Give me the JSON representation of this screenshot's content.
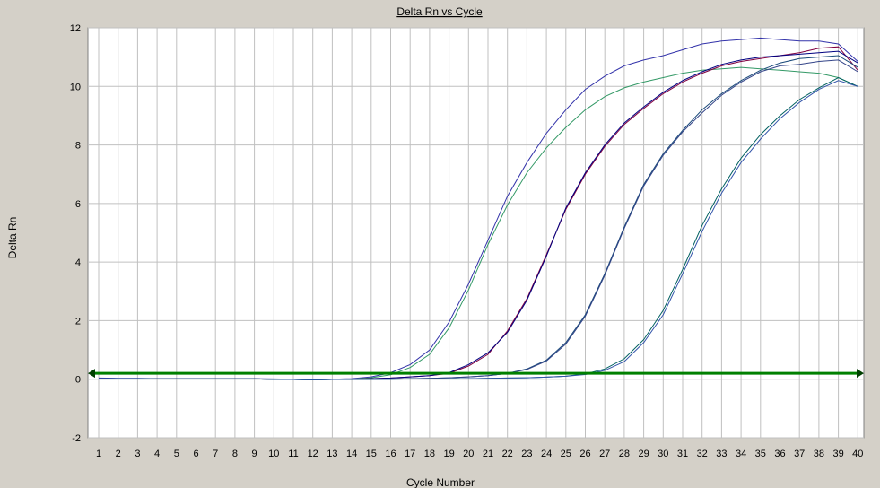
{
  "chart_data": {
    "type": "line",
    "title": "Delta Rn vs Cycle",
    "xlabel": "Cycle Number",
    "ylabel": "Delta Rn",
    "xlim": [
      1,
      40
    ],
    "ylim": [
      -2,
      12
    ],
    "x": [
      1,
      2,
      3,
      4,
      5,
      6,
      7,
      8,
      9,
      10,
      11,
      12,
      13,
      14,
      15,
      16,
      17,
      18,
      19,
      20,
      21,
      22,
      23,
      24,
      25,
      26,
      27,
      28,
      29,
      30,
      31,
      32,
      33,
      34,
      35,
      36,
      37,
      38,
      39,
      40
    ],
    "y_ticks": [
      "-2",
      "0",
      "2",
      "4",
      "6",
      "8",
      "10",
      "12"
    ],
    "x_ticks": [
      "1",
      "2",
      "3",
      "4",
      "5",
      "6",
      "7",
      "8",
      "9",
      "10",
      "11",
      "12",
      "13",
      "14",
      "15",
      "16",
      "17",
      "18",
      "19",
      "20",
      "21",
      "22",
      "23",
      "24",
      "25",
      "26",
      "27",
      "28",
      "29",
      "30",
      "31",
      "32",
      "33",
      "34",
      "35",
      "36",
      "37",
      "38",
      "39",
      "40"
    ],
    "grid": true,
    "threshold": 0.2,
    "colors": {
      "background": "#ffffff",
      "frame": "#d4d0c8",
      "grid": "#c0c0c0",
      "threshold": "#008000",
      "arrow": "#004000"
    },
    "series": [
      {
        "color": "#3333aa",
        "values": [
          0.04,
          0.03,
          0.03,
          0.02,
          0.02,
          0.02,
          0.02,
          0.02,
          0.02,
          0.01,
          0.0,
          -0.01,
          0.0,
          0.02,
          0.08,
          0.22,
          0.5,
          1.0,
          1.95,
          3.25,
          4.75,
          6.25,
          7.4,
          8.4,
          9.2,
          9.9,
          10.35,
          10.7,
          10.9,
          11.05,
          11.25,
          11.45,
          11.55,
          11.6,
          11.65,
          11.6,
          11.55,
          11.55,
          11.45,
          10.85
        ]
      },
      {
        "color": "#339966",
        "values": [
          0.02,
          0.02,
          0.02,
          0.01,
          0.01,
          0.01,
          0.01,
          0.01,
          0.01,
          0.0,
          -0.01,
          -0.02,
          -0.01,
          0.0,
          0.05,
          0.15,
          0.4,
          0.85,
          1.75,
          3.05,
          4.6,
          5.95,
          7.05,
          7.9,
          8.6,
          9.2,
          9.65,
          9.95,
          10.15,
          10.3,
          10.45,
          10.55,
          10.6,
          10.65,
          10.6,
          10.55,
          10.5,
          10.45,
          10.3,
          10.0
        ]
      },
      {
        "color": "#800040",
        "values": [
          0.02,
          0.02,
          0.02,
          0.01,
          0.01,
          0.01,
          0.01,
          0.01,
          0.01,
          0.0,
          -0.01,
          -0.01,
          0.0,
          0.0,
          0.02,
          0.04,
          0.08,
          0.12,
          0.2,
          0.45,
          0.85,
          1.65,
          2.75,
          4.25,
          5.8,
          7.0,
          7.95,
          8.7,
          9.25,
          9.75,
          10.15,
          10.45,
          10.7,
          10.85,
          10.95,
          11.05,
          11.15,
          11.3,
          11.35,
          10.55
        ]
      },
      {
        "color": "#000080",
        "values": [
          0.02,
          0.02,
          0.02,
          0.01,
          0.01,
          0.01,
          0.01,
          0.01,
          0.01,
          0.0,
          -0.01,
          -0.01,
          0.0,
          0.0,
          0.02,
          0.04,
          0.08,
          0.12,
          0.22,
          0.5,
          0.9,
          1.6,
          2.7,
          4.2,
          5.85,
          7.05,
          8.0,
          8.75,
          9.3,
          9.8,
          10.2,
          10.5,
          10.75,
          10.9,
          11.0,
          11.05,
          11.1,
          11.15,
          11.2,
          10.8
        ]
      },
      {
        "color": "#1a4a7a",
        "values": [
          0.02,
          0.02,
          0.02,
          0.01,
          0.01,
          0.01,
          0.01,
          0.01,
          0.01,
          0.0,
          -0.01,
          -0.02,
          -0.01,
          0.0,
          0.0,
          0.01,
          0.02,
          0.03,
          0.05,
          0.08,
          0.12,
          0.2,
          0.35,
          0.65,
          1.25,
          2.2,
          3.6,
          5.2,
          6.65,
          7.7,
          8.5,
          9.2,
          9.75,
          10.2,
          10.55,
          10.8,
          10.95,
          11.0,
          11.05,
          10.65
        ]
      },
      {
        "color": "#334488",
        "values": [
          0.02,
          0.02,
          0.02,
          0.01,
          0.01,
          0.01,
          0.01,
          0.01,
          0.01,
          0.0,
          -0.01,
          -0.02,
          -0.01,
          0.0,
          0.0,
          0.01,
          0.02,
          0.03,
          0.05,
          0.08,
          0.12,
          0.2,
          0.33,
          0.62,
          1.2,
          2.15,
          3.55,
          5.15,
          6.6,
          7.65,
          8.45,
          9.1,
          9.7,
          10.15,
          10.5,
          10.7,
          10.75,
          10.85,
          10.9,
          10.5
        ]
      },
      {
        "color": "#006060",
        "values": [
          0.02,
          0.02,
          0.02,
          0.01,
          0.01,
          0.01,
          0.01,
          0.01,
          0.01,
          0.0,
          -0.01,
          -0.02,
          -0.01,
          0.0,
          0.0,
          0.0,
          0.01,
          0.01,
          0.01,
          0.02,
          0.03,
          0.04,
          0.05,
          0.07,
          0.1,
          0.18,
          0.35,
          0.7,
          1.35,
          2.35,
          3.75,
          5.25,
          6.5,
          7.55,
          8.35,
          9.0,
          9.55,
          9.95,
          10.3,
          10.0
        ]
      },
      {
        "color": "#3355aa",
        "values": [
          0.02,
          0.02,
          0.02,
          0.01,
          0.01,
          0.01,
          0.01,
          0.01,
          0.01,
          0.0,
          -0.01,
          -0.02,
          -0.01,
          0.0,
          0.0,
          0.0,
          0.01,
          0.01,
          0.01,
          0.02,
          0.03,
          0.04,
          0.05,
          0.07,
          0.1,
          0.16,
          0.3,
          0.6,
          1.25,
          2.2,
          3.6,
          5.05,
          6.35,
          7.4,
          8.2,
          8.9,
          9.45,
          9.9,
          10.2,
          10.0
        ]
      }
    ]
  }
}
